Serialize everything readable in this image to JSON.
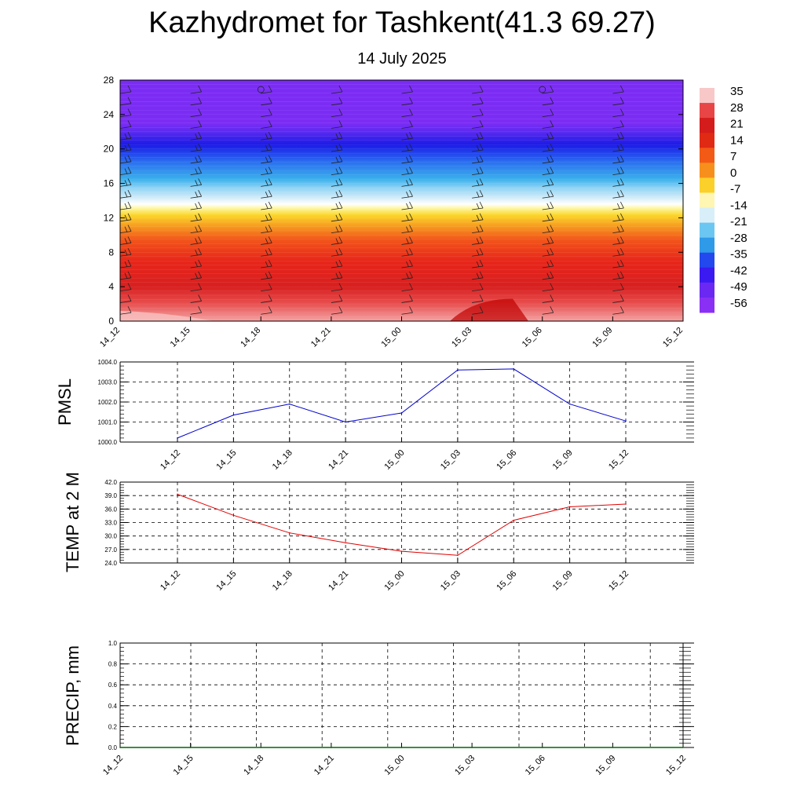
{
  "header": {
    "title": "Kazhydromet for Tashkent(41.3 69.27)",
    "subtitle": "14 July 2025"
  },
  "chart_data": [
    {
      "type": "heatmap",
      "name": "contour",
      "x_ticks": [
        "14_12",
        "14_15",
        "14_18",
        "14_21",
        "15_00",
        "15_03",
        "15_06",
        "15_09",
        "15_12"
      ],
      "y_ticks": [
        "0",
        "4",
        "8",
        "12",
        "16",
        "20",
        "24",
        "28"
      ],
      "ylim": [
        0,
        28
      ],
      "bands": [
        {
          "level": 0,
          "color": "#f5a3a3"
        },
        {
          "level": 2,
          "color": "#e85050"
        },
        {
          "level": 4,
          "color": "#d81f1f"
        },
        {
          "level": 7,
          "color": "#e8261a"
        },
        {
          "level": 9.5,
          "color": "#f2561a"
        },
        {
          "level": 11,
          "color": "#f79a1e"
        },
        {
          "level": 12.3,
          "color": "#fbd62a"
        },
        {
          "level": 13.2,
          "color": "#fff9b0"
        },
        {
          "level": 13.6,
          "color": "#ffffff"
        },
        {
          "level": 14.5,
          "color": "#c8e8f8"
        },
        {
          "level": 15.5,
          "color": "#8fd3f4"
        },
        {
          "level": 16.5,
          "color": "#3ab0ec"
        },
        {
          "level": 18.5,
          "color": "#2a6ef0"
        },
        {
          "level": 20.5,
          "color": "#1a1ae6"
        },
        {
          "level": 22,
          "color": "#5b2af0"
        },
        {
          "level": 23,
          "color": "#7b2cf4"
        },
        {
          "level": 28,
          "color": "#7b2cf4"
        }
      ],
      "colorbar_labels": [
        "35",
        "28",
        "21",
        "14",
        "7",
        "0",
        "-7",
        "-14",
        "-21",
        "-28",
        "-35",
        "-42",
        "-49",
        "-56"
      ],
      "colorbar_colors": [
        "#f8c8c8",
        "#e84646",
        "#d41c1c",
        "#e02a14",
        "#f25a16",
        "#f78f1c",
        "#fbd02a",
        "#fff6b4",
        "#d8effa",
        "#6cc6f2",
        "#2f9ae8",
        "#2348ee",
        "#3a1af0",
        "#6a28f2",
        "#8a30f4"
      ]
    },
    {
      "type": "line",
      "name": "pmsl",
      "ylabel": "PMSL",
      "categories": [
        "14_12",
        "14_15",
        "14_18",
        "14_21",
        "15_00",
        "15_03",
        "15_06",
        "15_09",
        "15_12"
      ],
      "values": [
        1000.2,
        1001.35,
        1001.9,
        1001.0,
        1001.45,
        1003.6,
        1003.65,
        1001.9,
        1001.05
      ],
      "ylim": [
        1000.0,
        1004.0
      ],
      "y_ticks": [
        "1000.0",
        "1001.0",
        "1002.0",
        "1003.0",
        "1004.0"
      ],
      "color": "#0000cc"
    },
    {
      "type": "line",
      "name": "temp",
      "ylabel": "TEMP at 2 M",
      "categories": [
        "14_12",
        "14_15",
        "14_18",
        "14_21",
        "15_00",
        "15_03",
        "15_06",
        "15_09",
        "15_12"
      ],
      "values": [
        39.3,
        34.6,
        30.7,
        28.5,
        26.6,
        25.7,
        33.5,
        36.5,
        37.1
      ],
      "ylim": [
        24.0,
        42.0
      ],
      "y_ticks": [
        "24.0",
        "27.0",
        "30.0",
        "33.0",
        "36.0",
        "39.0",
        "42.0"
      ],
      "color": "#e00000"
    },
    {
      "type": "line",
      "name": "precip",
      "ylabel": "PRECIP, mm",
      "categories": [
        "14_12",
        "14_15",
        "14_18",
        "14_21",
        "15_00",
        "15_03",
        "15_06",
        "15_09",
        "15_12"
      ],
      "values": [
        0,
        0,
        0,
        0,
        0,
        0,
        0,
        0,
        0
      ],
      "ylim": [
        0.0,
        1.0
      ],
      "y_ticks": [
        "0.0",
        "0.2",
        "0.4",
        "0.6",
        "0.8",
        "1.0"
      ],
      "color": "#006600"
    }
  ]
}
